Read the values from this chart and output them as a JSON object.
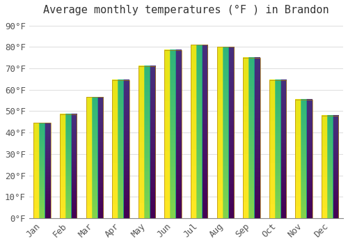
{
  "title": "Average monthly temperatures (°F ) in Brandon",
  "months": [
    "Jan",
    "Feb",
    "Mar",
    "Apr",
    "May",
    "Jun",
    "Jul",
    "Aug",
    "Sep",
    "Oct",
    "Nov",
    "Dec"
  ],
  "values": [
    44.5,
    48.5,
    56.5,
    64.5,
    71.0,
    78.5,
    81.0,
    80.0,
    75.0,
    64.5,
    55.5,
    48.0
  ],
  "bar_color_top": "#F5A623",
  "bar_color_bottom": "#FFD000",
  "bar_edge_color": "#B8860B",
  "background_color": "#FFFFFF",
  "grid_color": "#E0E0E0",
  "yticks": [
    0,
    10,
    20,
    30,
    40,
    50,
    60,
    70,
    80,
    90
  ],
  "ylim": [
    0,
    93
  ],
  "title_fontsize": 11,
  "tick_fontsize": 9,
  "font_family": "monospace"
}
